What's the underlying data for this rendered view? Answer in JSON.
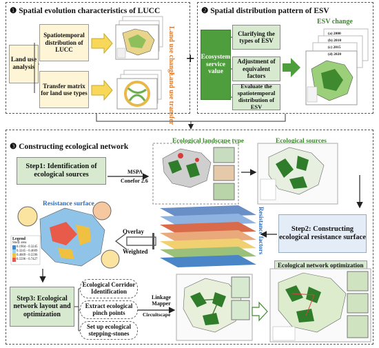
{
  "section1": {
    "number": "❶",
    "title": "Spatial evolution characteristics of LUCC",
    "land_use_analysis": "Land use analysis",
    "box_distribution": "Spatiotemporal distribution of LUCC",
    "box_transfer": "Transfer matrix for land use types",
    "label_change": "Land use change",
    "label_transfer": "Land use transfer"
  },
  "section2": {
    "number": "❷",
    "title": "Spatial distribution pattern of ESV",
    "esv_value": "Ecosystem service value",
    "box_clarify": "Clarifying the types of ESV",
    "box_adjust": "Adjustment of equivalent factors",
    "box_evaluate": "Evaluate the spatiotemporal distribution of ESV",
    "label_esv_change": "ESV change",
    "years": [
      "(a) 2000",
      "(b) 2010",
      "(c) 2015",
      "(d) 2020"
    ]
  },
  "plus": "+",
  "section3": {
    "number": "❸",
    "title": "Constructing ecological network",
    "step1": "Step1: Identification of ecological sources",
    "mspa": "MSPA",
    "conefor": "Conefor 2.6",
    "landscape_type": "Ecological landscape type",
    "ecological_sources": "Ecological sources",
    "resistance_surface": "Resistance surface",
    "resistance_factors": "Resistance factors",
    "overlay": "Overlay",
    "weighted": "Weighted",
    "step2": "Step2: Constructing ecological resistance surface",
    "step3": "Step3: Ecological network layout and optimization",
    "corridor": "Ecological Corridor Identification",
    "pinch": "Extract ecological pinch points",
    "stepping": "Set up ecological stepping-stones",
    "linkage": "Linkage Mapper",
    "circuitscape": "Circuitscape",
    "optimization": "Ecological network optimization",
    "legend": "Legend",
    "study_area": "Study area",
    "resist_legend": [
      "0.1904 - 0.3245",
      "0.3245 - 0.4609",
      "0.4609 - 0.5596",
      "0.5596 - 0.7427"
    ]
  },
  "colors": {
    "yellow": "#fdf5d6",
    "green": "#d7ead0",
    "dark_green": "#4f9e3e",
    "blue": "#e3ecf7",
    "orange": "#e07a2c"
  }
}
